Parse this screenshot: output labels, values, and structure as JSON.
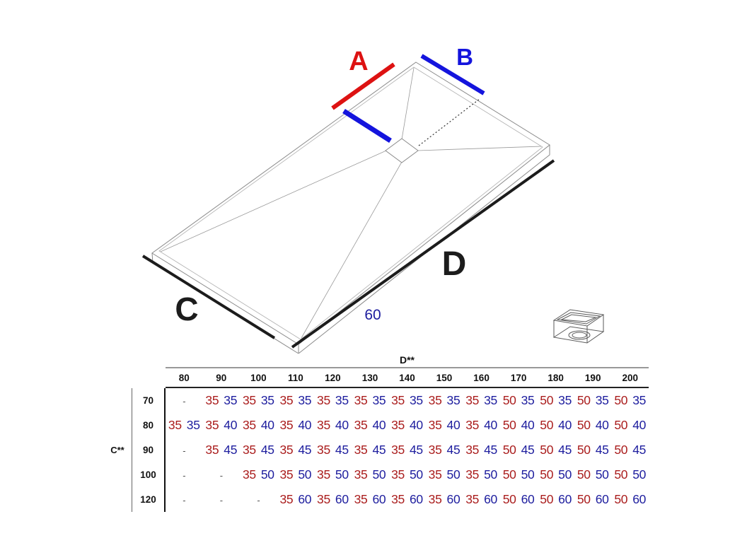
{
  "diagram": {
    "dim_a_label": "A",
    "dim_b_label": "B",
    "dim_c_label": "C",
    "dim_d_label": "D",
    "drain_offset_label": "60",
    "colors": {
      "dim_a_red": "#dd1212",
      "dim_b_blue": "#1414dd",
      "dim_cd_black": "#1c1c1c",
      "table_red": "#aa1d1d",
      "table_blue": "#1d1d9e"
    }
  },
  "table": {
    "col_axis_label": "D**",
    "row_axis_label": "C**",
    "empty_cell": "-",
    "columns": [
      "80",
      "90",
      "100",
      "110",
      "120",
      "130",
      "140",
      "150",
      "160",
      "170",
      "180",
      "190",
      "200"
    ],
    "rows": [
      {
        "label": "70",
        "cells": [
          null,
          [
            "35",
            "35"
          ],
          [
            "35",
            "35"
          ],
          [
            "35",
            "35"
          ],
          [
            "35",
            "35"
          ],
          [
            "35",
            "35"
          ],
          [
            "35",
            "35"
          ],
          [
            "35",
            "35"
          ],
          [
            "35",
            "35"
          ],
          [
            "50",
            "35"
          ],
          [
            "50",
            "35"
          ],
          [
            "50",
            "35"
          ],
          [
            "50",
            "35"
          ]
        ]
      },
      {
        "label": "80",
        "cells": [
          [
            "35",
            "35"
          ],
          [
            "35",
            "40"
          ],
          [
            "35",
            "40"
          ],
          [
            "35",
            "40"
          ],
          [
            "35",
            "40"
          ],
          [
            "35",
            "40"
          ],
          [
            "35",
            "40"
          ],
          [
            "35",
            "40"
          ],
          [
            "35",
            "40"
          ],
          [
            "50",
            "40"
          ],
          [
            "50",
            "40"
          ],
          [
            "50",
            "40"
          ],
          [
            "50",
            "40"
          ]
        ]
      },
      {
        "label": "90",
        "cells": [
          null,
          [
            "35",
            "45"
          ],
          [
            "35",
            "45"
          ],
          [
            "35",
            "45"
          ],
          [
            "35",
            "45"
          ],
          [
            "35",
            "45"
          ],
          [
            "35",
            "45"
          ],
          [
            "35",
            "45"
          ],
          [
            "35",
            "45"
          ],
          [
            "50",
            "45"
          ],
          [
            "50",
            "45"
          ],
          [
            "50",
            "45"
          ],
          [
            "50",
            "45"
          ]
        ]
      },
      {
        "label": "100",
        "cells": [
          null,
          null,
          [
            "35",
            "50"
          ],
          [
            "35",
            "50"
          ],
          [
            "35",
            "50"
          ],
          [
            "35",
            "50"
          ],
          [
            "35",
            "50"
          ],
          [
            "35",
            "50"
          ],
          [
            "35",
            "50"
          ],
          [
            "50",
            "50"
          ],
          [
            "50",
            "50"
          ],
          [
            "50",
            "50"
          ],
          [
            "50",
            "50"
          ]
        ]
      },
      {
        "label": "120",
        "cells": [
          null,
          null,
          null,
          [
            "35",
            "60"
          ],
          [
            "35",
            "60"
          ],
          [
            "35",
            "60"
          ],
          [
            "35",
            "60"
          ],
          [
            "35",
            "60"
          ],
          [
            "35",
            "60"
          ],
          [
            "50",
            "60"
          ],
          [
            "50",
            "60"
          ],
          [
            "50",
            "60"
          ],
          [
            "50",
            "60"
          ]
        ]
      }
    ]
  }
}
